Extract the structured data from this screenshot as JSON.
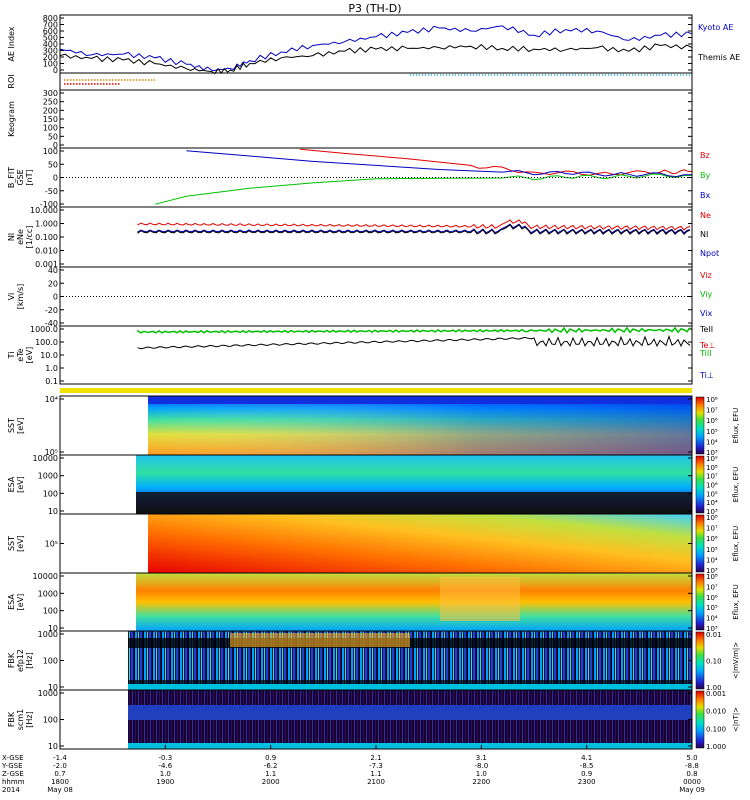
{
  "title": "P3 (TH-D)",
  "colors": {
    "red": "#e00000",
    "green": "#00c000",
    "blue": "#0000c0",
    "black": "#000000",
    "cyan": "#00b8d8",
    "orange": "#e08000"
  },
  "chart_data": [
    {
      "type": "line",
      "panel": "ae",
      "ylabel": "AE Index",
      "yticks": [
        "0",
        "100",
        "200",
        "300",
        "400",
        "500",
        "600",
        "700",
        "800"
      ],
      "ylim": [
        0,
        800
      ],
      "series": [
        {
          "name": "Kyoto AE",
          "color": "#0000c0",
          "x": [
            0,
            0.05,
            0.1,
            0.15,
            0.2,
            0.24,
            0.27,
            0.3,
            0.35,
            0.4,
            0.45,
            0.5,
            0.55,
            0.6,
            0.65,
            0.7,
            0.75,
            0.8,
            0.85,
            0.9,
            0.95,
            1.0
          ],
          "y": [
            330,
            250,
            260,
            210,
            120,
            40,
            60,
            170,
            290,
            380,
            430,
            500,
            560,
            620,
            580,
            650,
            520,
            600,
            580,
            450,
            520,
            540
          ]
        },
        {
          "name": "Themis AE",
          "color": "#000000",
          "x": [
            0,
            0.05,
            0.1,
            0.15,
            0.2,
            0.24,
            0.27,
            0.3,
            0.35,
            0.4,
            0.45,
            0.5,
            0.55,
            0.6,
            0.65,
            0.7,
            0.75,
            0.8,
            0.85,
            0.9,
            0.95,
            1.0
          ],
          "y": [
            240,
            200,
            180,
            130,
            60,
            20,
            40,
            130,
            210,
            240,
            300,
            330,
            340,
            350,
            370,
            340,
            330,
            320,
            350,
            300,
            380,
            350
          ]
        }
      ]
    },
    {
      "type": "bar",
      "panel": "roi",
      "ylabel": "ROI"
    },
    {
      "type": "line",
      "panel": "keogram",
      "ylabel": "Keogram",
      "yticks": [
        "0",
        "50",
        "100",
        "150",
        "200",
        "250",
        "300"
      ]
    },
    {
      "type": "line",
      "panel": "bfield",
      "ylabel": "B_FIT",
      "ylabel2": "GSE",
      "ylabel3": "[nT]",
      "yticks": [
        "-100",
        "-50",
        "0",
        "50",
        "100"
      ],
      "ylim": [
        -110,
        110
      ],
      "series": [
        {
          "name": "Bz",
          "color": "#e00000",
          "x": [
            0.38,
            0.45,
            0.55,
            0.65,
            0.75,
            0.85,
            0.95,
            1.0
          ],
          "y": [
            105,
            90,
            70,
            45,
            20,
            15,
            20,
            22
          ]
        },
        {
          "name": "By",
          "color": "#00c000",
          "x": [
            0.15,
            0.2,
            0.3,
            0.4,
            0.5,
            0.6,
            0.7,
            0.8,
            0.9,
            1.0
          ],
          "y": [
            -100,
            -70,
            -40,
            -20,
            -5,
            -3,
            -2,
            0,
            5,
            8
          ]
        },
        {
          "name": "Bx",
          "color": "#0000c0",
          "x": [
            0.2,
            0.3,
            0.4,
            0.5,
            0.6,
            0.7,
            0.8,
            0.9,
            1.0
          ],
          "y": [
            100,
            80,
            60,
            45,
            30,
            20,
            15,
            12,
            10
          ]
        }
      ]
    },
    {
      "type": "line",
      "panel": "density",
      "ylabel": "NI",
      "ylabel2": "eNe",
      "ylabel3": "[1/cc]",
      "yticks": [
        "10.000",
        "1.000",
        "0.100",
        "0.010",
        "0.001"
      ],
      "series": [
        {
          "name": "Ne",
          "color": "#e00000"
        },
        {
          "name": "NI",
          "color": "#000000"
        },
        {
          "name": "Npot",
          "color": "#0000c0"
        }
      ]
    },
    {
      "type": "line",
      "panel": "velocity",
      "ylabel": "Vi",
      "ylabel2": "[km/s]",
      "yticks": [
        "40",
        "20",
        "0",
        "-20",
        "-40"
      ],
      "series": [
        {
          "name": "Viz",
          "color": "#e00000"
        },
        {
          "name": "Viy",
          "color": "#00c000"
        },
        {
          "name": "Vix",
          "color": "#0000c0"
        }
      ]
    },
    {
      "type": "line",
      "panel": "temperature",
      "ylabel": "Ti",
      "ylabel2": "eTe",
      "ylabel3": "[eV]",
      "yticks": [
        "1000.0",
        "100.0",
        "10.0",
        "1.0",
        "0.1"
      ],
      "series": [
        {
          "name": "TeII",
          "color": "#000000"
        },
        {
          "name": "Te⊥",
          "color": "#e00000"
        },
        {
          "name": "TiII",
          "color": "#00c000"
        },
        {
          "name": "Ti⊥",
          "color": "#0000c0"
        }
      ]
    },
    {
      "type": "heatmap",
      "panel": "sst_e",
      "ylabel": "SST",
      "ylabel2": "[eV]",
      "yticks": [
        "10⁴",
        "10⁵"
      ],
      "cbar": [
        "10³",
        "10⁴",
        "10⁵",
        "10⁶",
        "10⁷",
        "10⁸"
      ],
      "clabel": "Eflux, EFU"
    },
    {
      "type": "heatmap",
      "panel": "esa_e",
      "ylabel": "ESA",
      "ylabel2": "[eV]",
      "yticks": [
        "10000",
        "1000",
        "100",
        "10"
      ],
      "cbar": [
        "10³",
        "10⁴",
        "10⁵",
        "10⁶",
        "10⁷",
        "10⁸",
        "10⁹"
      ],
      "clabel": "Eflux, EFU"
    },
    {
      "type": "heatmap",
      "panel": "sst_i",
      "ylabel": "SST",
      "ylabel2": "[eV]",
      "yticks": [
        "10⁵"
      ],
      "cbar": [
        "10³",
        "10⁴",
        "10⁵",
        "10⁶",
        "10⁷",
        "10⁸"
      ],
      "clabel": "Eflux, EFU"
    },
    {
      "type": "heatmap",
      "panel": "esa_i",
      "ylabel": "ESA",
      "ylabel2": "[eV]",
      "yticks": [
        "10000",
        "1000",
        "100",
        "10"
      ],
      "cbar": [
        "10³",
        "10⁴",
        "10⁵",
        "10⁶",
        "10⁷",
        "10⁸"
      ],
      "clabel": "Eflux, EFU"
    },
    {
      "type": "heatmap",
      "panel": "fbk_e",
      "ylabel": "FBK",
      "ylabel2": "efp12",
      "ylabel3": "[Hz]",
      "yticks": [
        "1000",
        "100",
        "10"
      ],
      "cbar": [
        "1.00",
        "0.10",
        "0.01"
      ],
      "clabel": "<|mV/m|>"
    },
    {
      "type": "heatmap",
      "panel": "fbk_b",
      "ylabel": "FBK",
      "ylabel2": "scm1",
      "ylabel3": "[Hz]",
      "yticks": [
        "1000",
        "100",
        "10"
      ],
      "cbar": [
        "1.000",
        "0.100",
        "0.010",
        "0.001"
      ],
      "clabel": "<|nT|>"
    }
  ],
  "xaxis": {
    "row_labels": [
      "X-GSE",
      "Y-GSE",
      "Z-GSE",
      "hhmm",
      "2014"
    ],
    "ticks": [
      {
        "v": [
          "-1.4",
          "-2.0",
          "0.7",
          "1800",
          "May 08"
        ]
      },
      {
        "v": [
          "-0.3",
          "-4.6",
          "1.0",
          "1900",
          ""
        ]
      },
      {
        "v": [
          "0.9",
          "-6.2",
          "1.1",
          "2000",
          ""
        ]
      },
      {
        "v": [
          "2.1",
          "-7.3",
          "1.1",
          "2100",
          ""
        ]
      },
      {
        "v": [
          "3.1",
          "-8.0",
          "1.0",
          "2200",
          ""
        ]
      },
      {
        "v": [
          "4.1",
          "-8.5",
          "0.9",
          "2300",
          ""
        ]
      },
      {
        "v": [
          "5.0",
          "-8.8",
          "0.8",
          "0000",
          "May 09"
        ]
      }
    ]
  }
}
